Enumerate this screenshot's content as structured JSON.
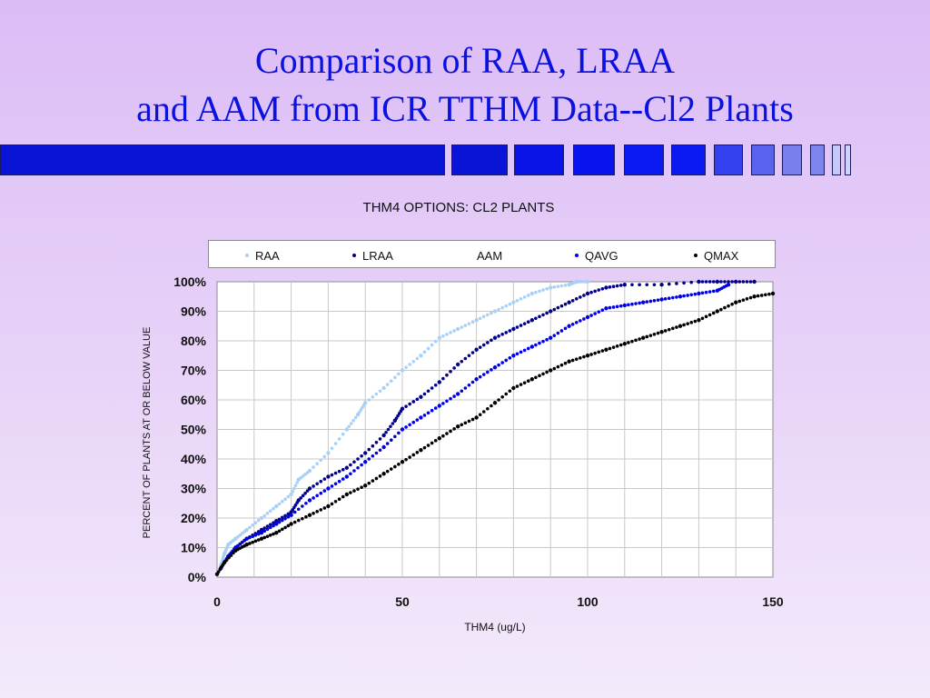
{
  "slide": {
    "title_line1": "Comparison of RAA, LRAA",
    "title_line2": "and AAM from ICR TTHM Data--Cl2 Plants"
  },
  "colors": {
    "title": "#0b12e0",
    "RAA": "#a9d0f5",
    "LRAA": "#00008b",
    "AAM": "#000000",
    "QAVG": "#0000e6",
    "QMAX": "#000000"
  },
  "chart_data": {
    "type": "scatter",
    "title": "THM4 OPTIONS: CL2 PLANTS",
    "xlabel": "THM4 (ug/L)",
    "ylabel": "PERCENT OF PLANTS AT OR BELOW VALUE",
    "xlim": [
      0,
      150
    ],
    "ylim": [
      0,
      100
    ],
    "x_ticks": [
      "0",
      "50",
      "100",
      "150"
    ],
    "y_ticks": [
      "0%",
      "10%",
      "20%",
      "30%",
      "40%",
      "50%",
      "60%",
      "70%",
      "80%",
      "90%",
      "100%"
    ],
    "grid": true,
    "legend_position": "top",
    "legend": [
      "RAA",
      "LRAA",
      "AAM",
      "QAVG",
      "QMAX"
    ],
    "series": [
      {
        "name": "RAA",
        "x": [
          1,
          2,
          3,
          5,
          8,
          12,
          16,
          20,
          22,
          25,
          30,
          35,
          38,
          40,
          45,
          50,
          55,
          60,
          65,
          70,
          75,
          80,
          85,
          90,
          95,
          97,
          100
        ],
        "y": [
          4,
          8,
          11,
          13,
          16,
          20,
          24,
          28,
          33,
          36,
          42,
          50,
          55,
          59,
          64,
          70,
          75,
          81,
          84,
          87,
          90,
          93,
          96,
          98,
          99,
          100,
          100
        ]
      },
      {
        "name": "LRAA",
        "x": [
          1,
          3,
          5,
          8,
          12,
          16,
          20,
          22,
          25,
          30,
          35,
          40,
          45,
          48,
          50,
          55,
          60,
          65,
          70,
          75,
          80,
          85,
          90,
          95,
          100,
          105,
          110,
          120,
          130,
          135,
          140,
          145
        ],
        "y": [
          3,
          7,
          10,
          13,
          16,
          19,
          22,
          26,
          30,
          34,
          37,
          42,
          48,
          53,
          57,
          61,
          66,
          72,
          77,
          81,
          84,
          87,
          90,
          93,
          96,
          98,
          99,
          99,
          100,
          100,
          100,
          100
        ]
      },
      {
        "name": "AAM",
        "x": [],
        "y": []
      },
      {
        "name": "QAVG",
        "x": [
          1,
          3,
          5,
          8,
          12,
          16,
          20,
          25,
          30,
          35,
          40,
          45,
          50,
          55,
          60,
          65,
          70,
          75,
          80,
          85,
          90,
          95,
          100,
          105,
          110,
          115,
          120,
          125,
          130,
          135,
          138
        ],
        "y": [
          3,
          7,
          10,
          13,
          15,
          18,
          21,
          26,
          30,
          34,
          39,
          44,
          50,
          54,
          58,
          62,
          67,
          71,
          75,
          78,
          81,
          85,
          88,
          91,
          92,
          93,
          94,
          95,
          96,
          97,
          99
        ]
      },
      {
        "name": "QMAX",
        "x": [
          0,
          2,
          5,
          8,
          12,
          16,
          20,
          25,
          30,
          35,
          40,
          45,
          50,
          55,
          60,
          65,
          70,
          75,
          80,
          85,
          90,
          95,
          100,
          105,
          110,
          115,
          120,
          125,
          130,
          135,
          140,
          145,
          150
        ],
        "y": [
          1,
          5,
          9,
          11,
          13,
          15,
          18,
          21,
          24,
          28,
          31,
          35,
          39,
          43,
          47,
          51,
          54,
          59,
          64,
          67,
          70,
          73,
          75,
          77,
          79,
          81,
          83,
          85,
          87,
          90,
          93,
          95,
          96
        ]
      }
    ]
  }
}
